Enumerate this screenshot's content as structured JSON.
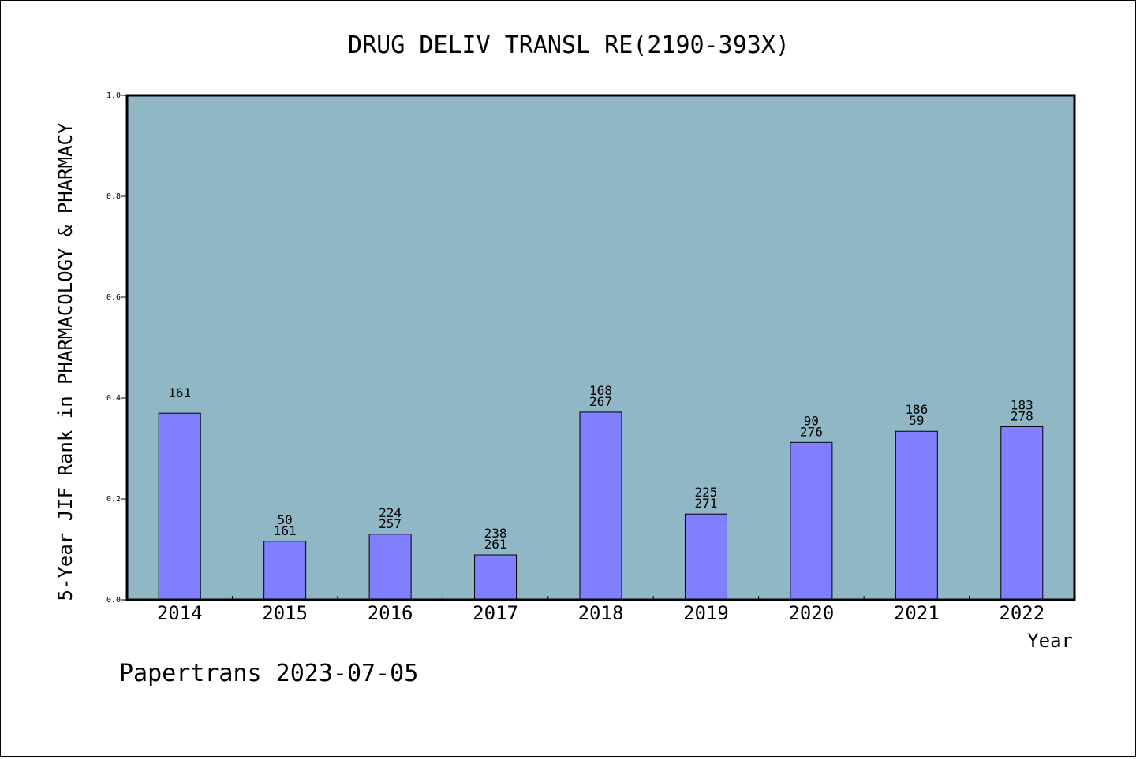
{
  "chart_data": {
    "type": "bar",
    "title": "DRUG DELIV TRANSL RE(2190-393X)",
    "ylabel": "5-Year JIF Rank in PHARMACOLOGY & PHARMACY",
    "xlabel": "Year",
    "ylim": [
      0,
      1.0
    ],
    "yticks": [
      "0.0",
      "0.2",
      "0.4",
      "0.6",
      "0.8",
      "1.0"
    ],
    "categories": [
      "2014",
      "2015",
      "2016",
      "2017",
      "2018",
      "2019",
      "2020",
      "2021",
      "2022"
    ],
    "values": [
      0.37,
      0.116,
      0.13,
      0.089,
      0.372,
      0.17,
      0.312,
      0.334,
      0.343
    ],
    "bar_labels": [
      [
        "161"
      ],
      [
        "50",
        "161"
      ],
      [
        "224",
        "257"
      ],
      [
        "238",
        "261"
      ],
      [
        "168",
        "267"
      ],
      [
        "225",
        "271"
      ],
      [
        "90",
        "276"
      ],
      [
        "186",
        "59"
      ],
      [
        "183",
        "278"
      ]
    ],
    "grid": false,
    "colors": {
      "plot_bg": "#8fb7c6",
      "bar": "#8080ff",
      "bar_edge": "#000000"
    }
  },
  "footer": "Papertrans 2023-07-05"
}
